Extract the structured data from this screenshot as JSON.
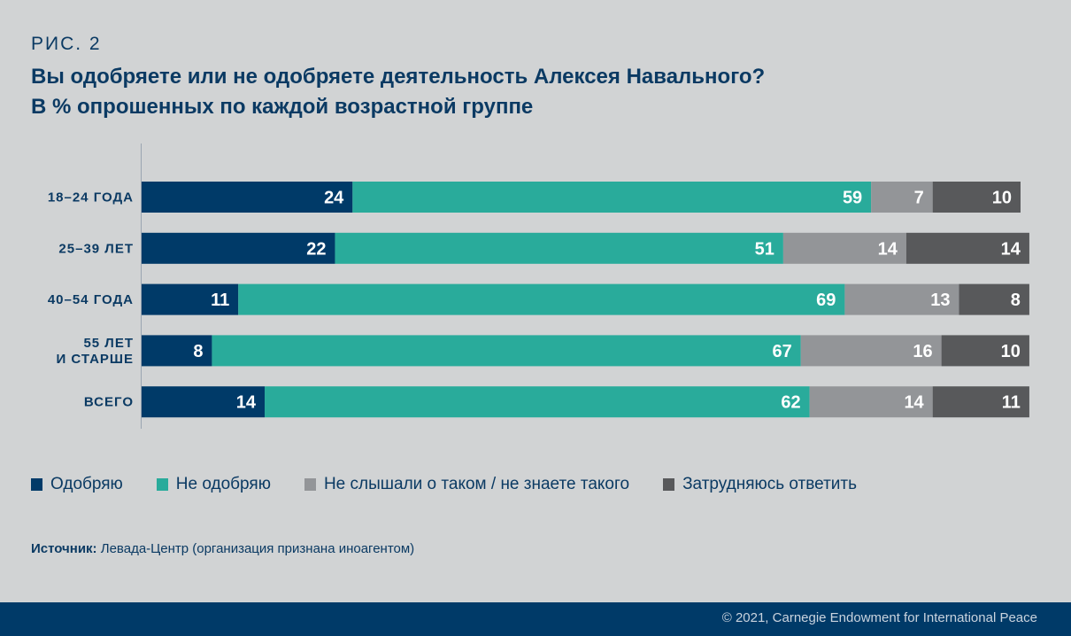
{
  "header": {
    "figure_label": "РИС. 2",
    "title_line1": "Вы одобряете или не одобряете деятельность Алексея Навального?",
    "title_line2": "В % опрошенных по каждой возрастной группе"
  },
  "chart_data": {
    "type": "bar",
    "orientation": "horizontal",
    "stacked": true,
    "title": "Вы одобряете или не одобряете деятельность Алексея Навального?",
    "subtitle": "В % опрошенных по каждой возрастной группе",
    "categories": [
      "18–24 ГОДА",
      "25–39 ЛЕТ",
      "40–54 ГОДА",
      "55 ЛЕТ\nИ СТАРШЕ",
      "ВСЕГО"
    ],
    "series": [
      {
        "name": "Одобряю",
        "color": "#003a68",
        "values": [
          24,
          22,
          11,
          8,
          14
        ]
      },
      {
        "name": "Не одобряю",
        "color": "#29ab9b",
        "values": [
          59,
          51,
          69,
          67,
          62
        ]
      },
      {
        "name": "Не слышали о таком / не знаете такого",
        "color": "#939598",
        "values": [
          7,
          14,
          13,
          16,
          14
        ]
      },
      {
        "name": "Затрудняюсь ответить",
        "color": "#58595b",
        "values": [
          10,
          14,
          8,
          10,
          11
        ]
      }
    ],
    "xlim": [
      0,
      100
    ],
    "xlabel": "",
    "ylabel": "",
    "grid": false,
    "legend_position": "bottom-left"
  },
  "source": {
    "label": "Источник:",
    "text": "Левада-Центр (организация признана иноагентом)"
  },
  "footer": {
    "copyright": "© 2021, Carnegie Endowment for International Peace"
  }
}
